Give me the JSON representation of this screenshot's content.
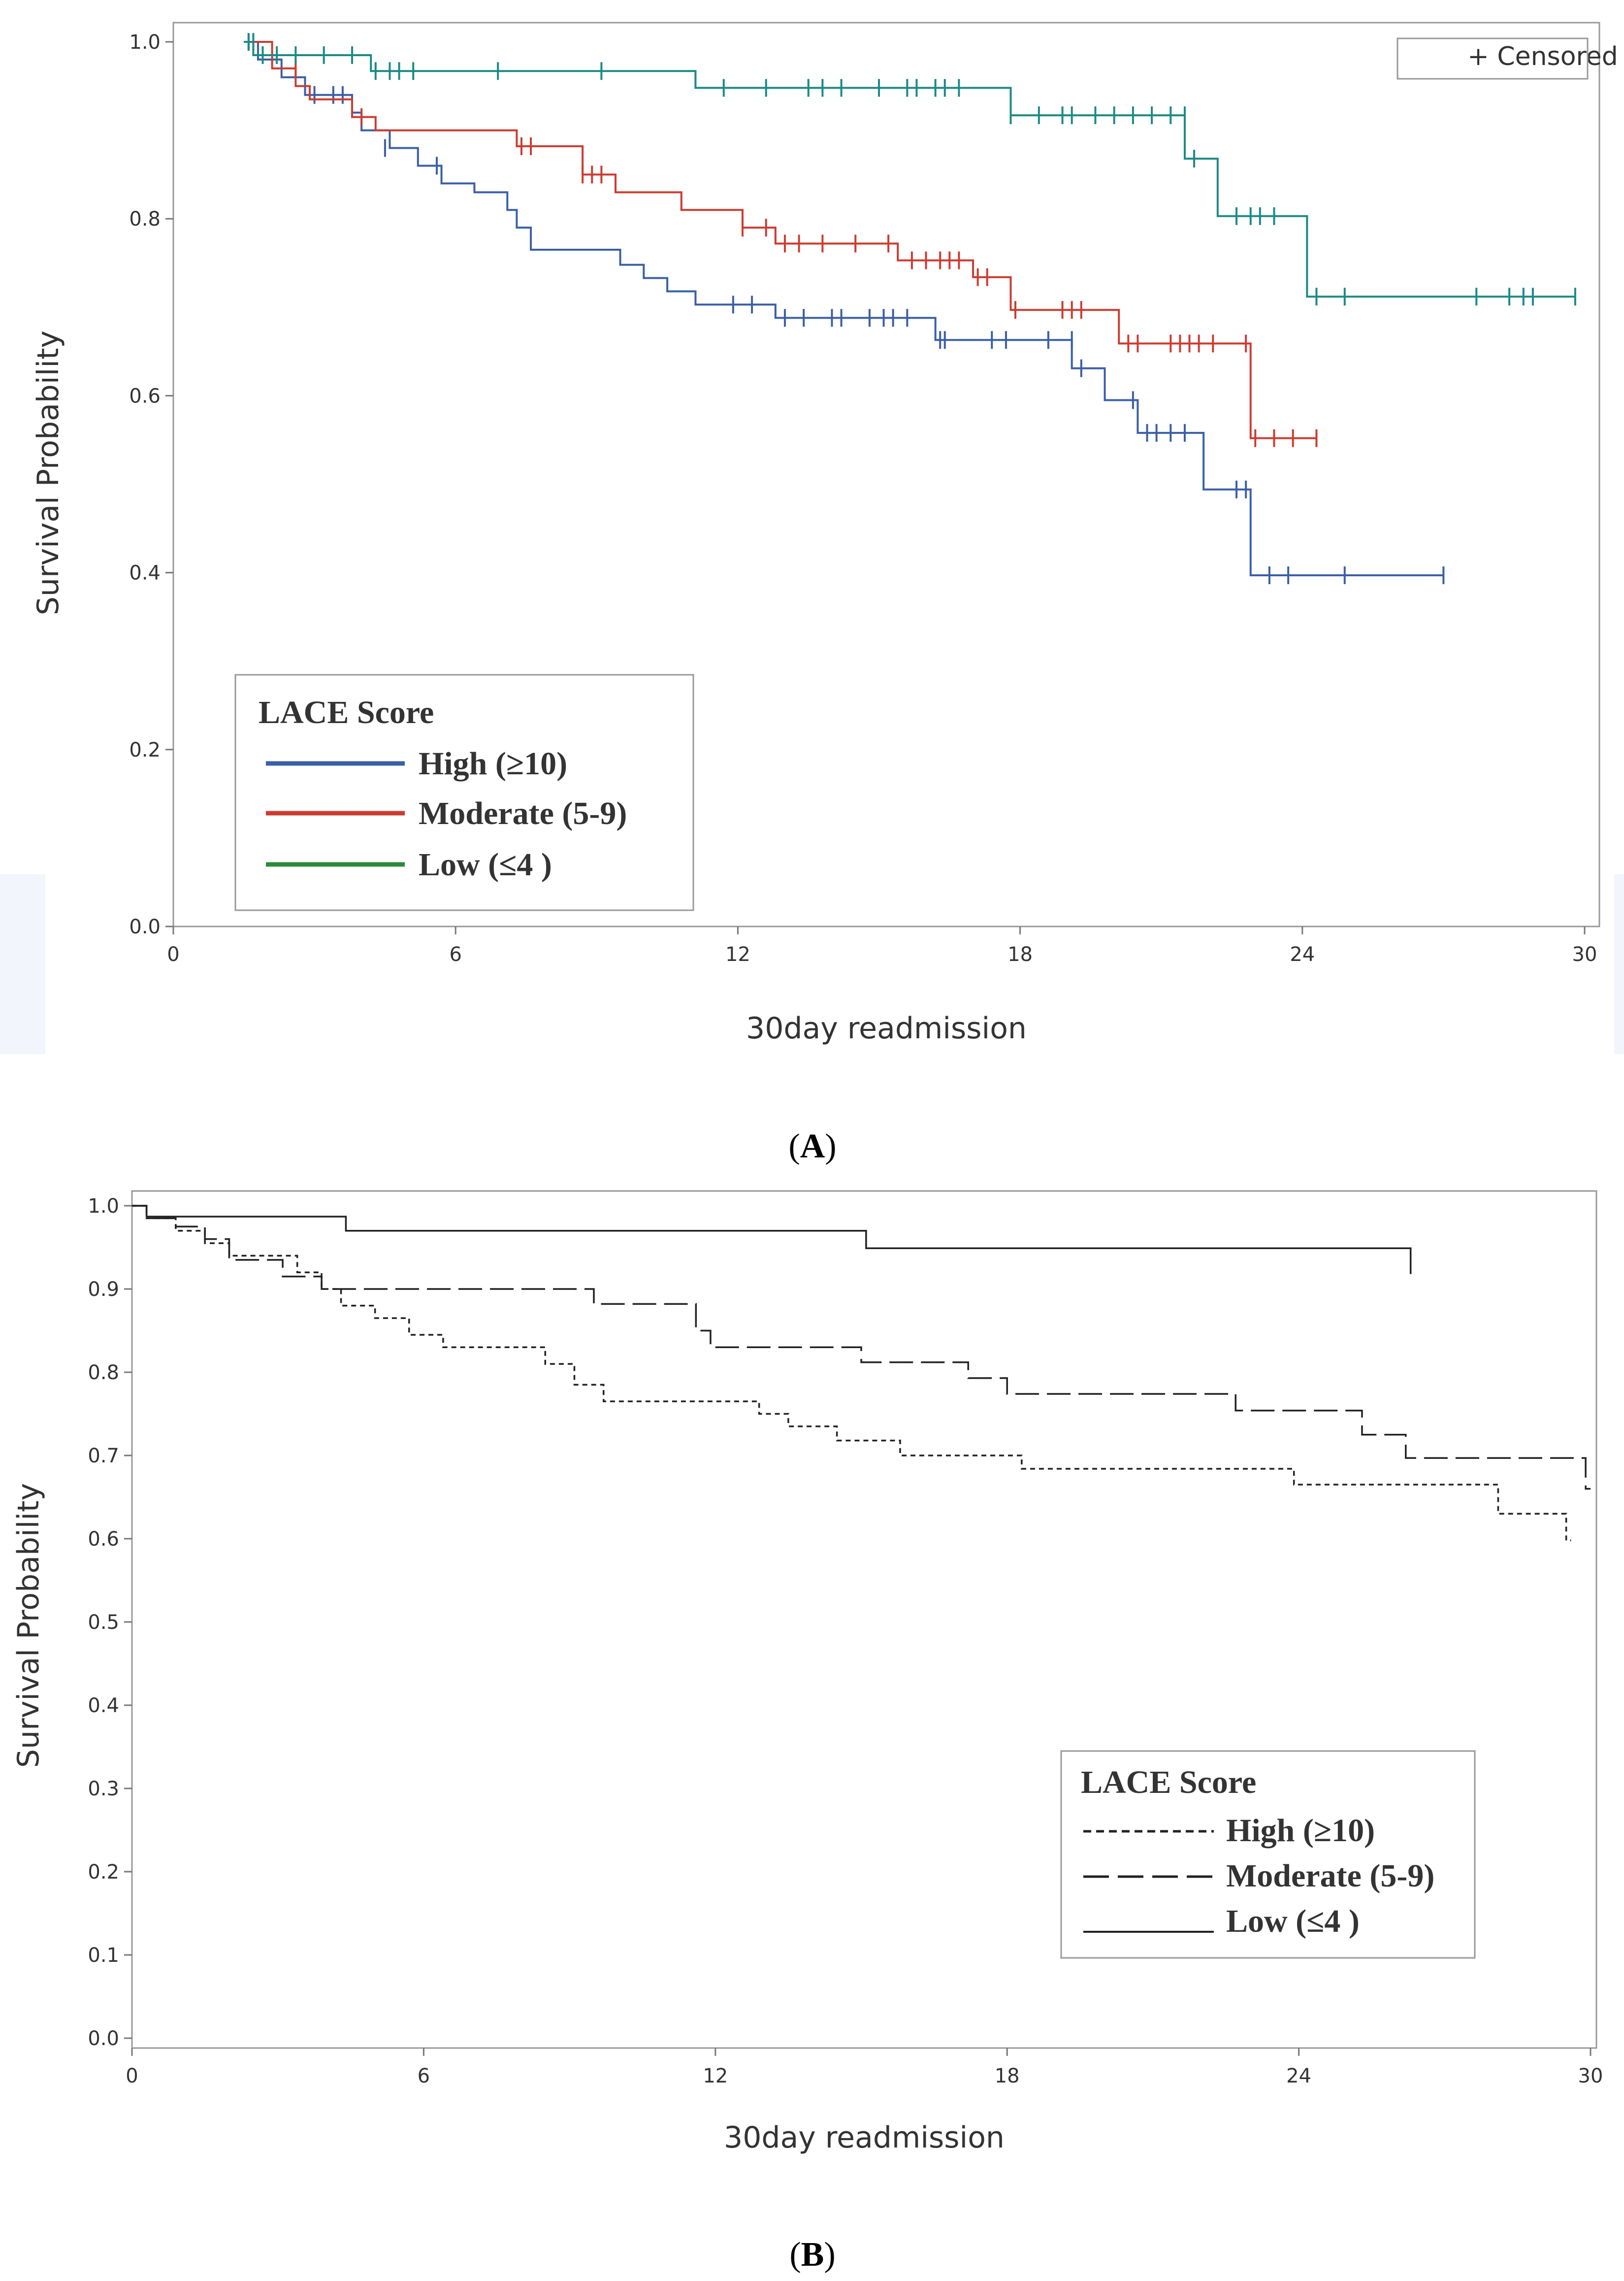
{
  "chart_data": [
    {
      "type": "line",
      "panel_label": "A",
      "xlabel": "30day readmission",
      "ylabel": "Survival Probability",
      "xlim": [
        0,
        30
      ],
      "ylim": [
        0,
        1.0
      ],
      "x_ticks": [
        "0",
        "6",
        "12",
        "18",
        "24",
        "30"
      ],
      "y_ticks": [
        "0.0",
        "0.2",
        "0.4",
        "0.6",
        "0.8",
        "1.0"
      ],
      "censored_label": "+ Censored",
      "legend": {
        "title": "LACE Score",
        "position": "bottom-left",
        "entries": [
          "High (≥10)",
          "Moderate (5-9)",
          "Low (≤4 )"
        ]
      },
      "series": [
        {
          "name": "High (≥10)",
          "color": "#3a5fa8",
          "steps": [
            [
              1.5,
              1.0
            ],
            [
              1.8,
              0.98
            ],
            [
              2.3,
              0.96
            ],
            [
              2.8,
              0.94
            ],
            [
              3.8,
              0.92
            ],
            [
              4.0,
              0.9
            ],
            [
              4.6,
              0.88
            ],
            [
              5.2,
              0.86
            ],
            [
              5.7,
              0.84
            ],
            [
              6.4,
              0.83
            ],
            [
              7.1,
              0.81
            ],
            [
              7.3,
              0.79
            ],
            [
              7.6,
              0.765
            ],
            [
              9.5,
              0.748
            ],
            [
              10.0,
              0.733
            ],
            [
              10.5,
              0.718
            ],
            [
              11.1,
              0.703
            ],
            [
              12.8,
              0.688
            ],
            [
              16.2,
              0.663
            ],
            [
              19.1,
              0.631
            ],
            [
              19.8,
              0.595
            ],
            [
              20.5,
              0.558
            ],
            [
              21.9,
              0.494
            ],
            [
              22.9,
              0.397
            ]
          ],
          "end_x": 27.0,
          "censored": [
            [
              1.6,
              1.0
            ],
            [
              3.0,
              0.94
            ],
            [
              3.4,
              0.94
            ],
            [
              3.6,
              0.94
            ],
            [
              4.5,
              0.88
            ],
            [
              5.6,
              0.86
            ],
            [
              11.9,
              0.703
            ],
            [
              12.3,
              0.703
            ],
            [
              13.0,
              0.688
            ],
            [
              13.4,
              0.688
            ],
            [
              14.0,
              0.688
            ],
            [
              14.2,
              0.688
            ],
            [
              14.8,
              0.688
            ],
            [
              15.1,
              0.688
            ],
            [
              15.3,
              0.688
            ],
            [
              15.6,
              0.688
            ],
            [
              16.3,
              0.663
            ],
            [
              16.4,
              0.663
            ],
            [
              17.4,
              0.663
            ],
            [
              17.7,
              0.663
            ],
            [
              18.6,
              0.663
            ],
            [
              19.1,
              0.663
            ],
            [
              19.3,
              0.631
            ],
            [
              20.4,
              0.595
            ],
            [
              20.7,
              0.558
            ],
            [
              20.9,
              0.558
            ],
            [
              21.2,
              0.558
            ],
            [
              21.5,
              0.558
            ],
            [
              22.6,
              0.494
            ],
            [
              22.8,
              0.494
            ],
            [
              23.3,
              0.397
            ],
            [
              23.7,
              0.397
            ],
            [
              24.9,
              0.397
            ],
            [
              27.0,
              0.397
            ]
          ]
        },
        {
          "name": "Moderate (5-9)",
          "color": "#cc3b30",
          "steps": [
            [
              1.5,
              1.0
            ],
            [
              2.1,
              0.97
            ],
            [
              2.6,
              0.95
            ],
            [
              2.9,
              0.935
            ],
            [
              3.8,
              0.915
            ],
            [
              4.3,
              0.9
            ],
            [
              7.3,
              0.882
            ],
            [
              8.7,
              0.85
            ],
            [
              9.4,
              0.83
            ],
            [
              10.8,
              0.81
            ],
            [
              12.1,
              0.79
            ],
            [
              12.8,
              0.772
            ],
            [
              15.4,
              0.753
            ],
            [
              17.0,
              0.734
            ],
            [
              17.8,
              0.697
            ],
            [
              20.1,
              0.659
            ],
            [
              22.9,
              0.552
            ]
          ],
          "end_x": 24.3,
          "censored": [
            [
              2.6,
              0.97
            ],
            [
              4.0,
              0.915
            ],
            [
              7.4,
              0.882
            ],
            [
              7.6,
              0.882
            ],
            [
              8.7,
              0.85
            ],
            [
              8.9,
              0.85
            ],
            [
              9.1,
              0.85
            ],
            [
              12.1,
              0.79
            ],
            [
              12.6,
              0.79
            ],
            [
              13.0,
              0.772
            ],
            [
              13.3,
              0.772
            ],
            [
              13.8,
              0.772
            ],
            [
              14.5,
              0.772
            ],
            [
              15.2,
              0.772
            ],
            [
              15.7,
              0.753
            ],
            [
              16.0,
              0.753
            ],
            [
              16.3,
              0.753
            ],
            [
              16.5,
              0.753
            ],
            [
              16.7,
              0.753
            ],
            [
              17.1,
              0.734
            ],
            [
              17.3,
              0.734
            ],
            [
              17.9,
              0.697
            ],
            [
              18.9,
              0.697
            ],
            [
              19.1,
              0.697
            ],
            [
              19.3,
              0.697
            ],
            [
              20.3,
              0.659
            ],
            [
              20.5,
              0.659
            ],
            [
              21.2,
              0.659
            ],
            [
              21.4,
              0.659
            ],
            [
              21.6,
              0.659
            ],
            [
              21.8,
              0.659
            ],
            [
              22.1,
              0.659
            ],
            [
              22.8,
              0.659
            ],
            [
              23.0,
              0.552
            ],
            [
              23.4,
              0.552
            ],
            [
              23.8,
              0.552
            ],
            [
              24.3,
              0.552
            ]
          ]
        },
        {
          "name": "Low (≤4 )",
          "color": "#1a8a84",
          "steps": [
            [
              1.5,
              1.0
            ],
            [
              1.7,
              0.985
            ],
            [
              4.2,
              0.967
            ],
            [
              11.1,
              0.948
            ],
            [
              17.8,
              0.917
            ],
            [
              21.5,
              0.868
            ],
            [
              22.2,
              0.803
            ],
            [
              24.1,
              0.712
            ]
          ],
          "end_x": 29.8,
          "censored": [
            [
              1.6,
              1.0
            ],
            [
              1.7,
              1.0
            ],
            [
              1.9,
              0.985
            ],
            [
              2.2,
              0.985
            ],
            [
              2.6,
              0.985
            ],
            [
              3.2,
              0.985
            ],
            [
              3.8,
              0.985
            ],
            [
              4.3,
              0.967
            ],
            [
              4.6,
              0.967
            ],
            [
              4.8,
              0.967
            ],
            [
              5.1,
              0.967
            ],
            [
              6.9,
              0.967
            ],
            [
              9.1,
              0.967
            ],
            [
              11.7,
              0.948
            ],
            [
              12.6,
              0.948
            ],
            [
              13.5,
              0.948
            ],
            [
              13.8,
              0.948
            ],
            [
              14.2,
              0.948
            ],
            [
              15.0,
              0.948
            ],
            [
              15.6,
              0.948
            ],
            [
              15.8,
              0.948
            ],
            [
              16.2,
              0.948
            ],
            [
              16.4,
              0.948
            ],
            [
              16.7,
              0.948
            ],
            [
              17.8,
              0.917
            ],
            [
              18.4,
              0.917
            ],
            [
              18.9,
              0.917
            ],
            [
              19.1,
              0.917
            ],
            [
              19.6,
              0.917
            ],
            [
              20.0,
              0.917
            ],
            [
              20.4,
              0.917
            ],
            [
              20.8,
              0.917
            ],
            [
              21.2,
              0.917
            ],
            [
              21.5,
              0.917
            ],
            [
              21.7,
              0.868
            ],
            [
              22.6,
              0.803
            ],
            [
              22.9,
              0.803
            ],
            [
              23.1,
              0.803
            ],
            [
              23.4,
              0.803
            ],
            [
              24.3,
              0.712
            ],
            [
              24.9,
              0.712
            ],
            [
              27.7,
              0.712
            ],
            [
              28.4,
              0.712
            ],
            [
              28.7,
              0.712
            ],
            [
              28.9,
              0.712
            ],
            [
              29.8,
              0.712
            ]
          ]
        }
      ]
    },
    {
      "type": "line",
      "panel_label": "B",
      "xlabel": "30day readmission",
      "ylabel": "Survival Probability",
      "xlim": [
        0,
        30
      ],
      "ylim": [
        0,
        1.0
      ],
      "x_ticks": [
        "0",
        "6",
        "12",
        "18",
        "24",
        "30"
      ],
      "y_ticks": [
        "0.0",
        "0.1",
        "0.2",
        "0.3",
        "0.4",
        "0.5",
        "0.6",
        "0.7",
        "0.8",
        "0.9",
        "1.0"
      ],
      "legend": {
        "title": "LACE Score",
        "position": "bottom-right",
        "entries": [
          "High (≥10)",
          "Moderate (5-9)",
          "Low (≤4 )"
        ]
      },
      "series": [
        {
          "name": "High (≥10)",
          "dash": "dotted",
          "steps": [
            [
              0,
              1.0
            ],
            [
              0.3,
              0.985
            ],
            [
              0.9,
              0.97
            ],
            [
              1.5,
              0.955
            ],
            [
              2.0,
              0.94
            ],
            [
              3.4,
              0.92
            ],
            [
              3.9,
              0.9
            ],
            [
              4.3,
              0.88
            ],
            [
              5.0,
              0.865
            ],
            [
              5.7,
              0.845
            ],
            [
              6.4,
              0.83
            ],
            [
              8.5,
              0.81
            ],
            [
              9.1,
              0.785
            ],
            [
              9.7,
              0.765
            ],
            [
              12.9,
              0.75
            ],
            [
              13.5,
              0.735
            ],
            [
              14.5,
              0.718
            ],
            [
              15.8,
              0.7
            ],
            [
              18.3,
              0.684
            ],
            [
              23.9,
              0.665
            ],
            [
              28.1,
              0.63
            ],
            [
              29.5,
              0.598
            ]
          ],
          "end_x": 29.6
        },
        {
          "name": "Moderate (5-9)",
          "dash": "dashed",
          "steps": [
            [
              0,
              1.0
            ],
            [
              0.3,
              0.985
            ],
            [
              0.9,
              0.975
            ],
            [
              1.5,
              0.96
            ],
            [
              2.0,
              0.935
            ],
            [
              3.1,
              0.915
            ],
            [
              3.9,
              0.9
            ],
            [
              9.5,
              0.882
            ],
            [
              11.6,
              0.85
            ],
            [
              11.9,
              0.83
            ],
            [
              15.0,
              0.812
            ],
            [
              17.2,
              0.793
            ],
            [
              18.0,
              0.774
            ],
            [
              22.7,
              0.754
            ],
            [
              25.3,
              0.725
            ],
            [
              26.2,
              0.697
            ],
            [
              29.9,
              0.66
            ]
          ],
          "end_x": 30
        },
        {
          "name": "Low (≤4 )",
          "dash": "solid",
          "steps": [
            [
              0,
              1.0
            ],
            [
              0.3,
              0.987
            ],
            [
              4.4,
              0.97
            ],
            [
              15.1,
              0.949
            ],
            [
              26.3,
              0.918
            ]
          ],
          "end_x": 26.3
        }
      ]
    }
  ]
}
